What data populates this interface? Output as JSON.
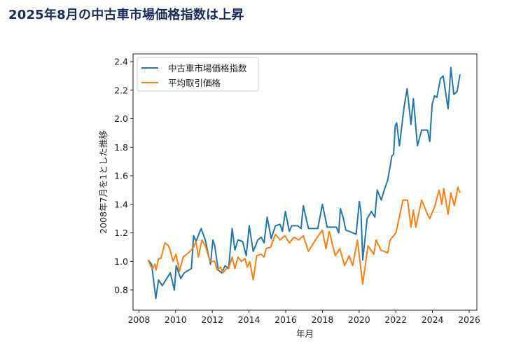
{
  "page": {
    "title": "2025年8月の中古車市場価格指数は上昇"
  },
  "chart_data": {
    "type": "line",
    "title": "",
    "xlabel": "年月",
    "ylabel": "2008年7月を1とした推移",
    "xlim": [
      2007.68,
      2026.42
    ],
    "ylim": [
      0.658,
      2.454
    ],
    "xticks": [
      2008,
      2010,
      2012,
      2014,
      2016,
      2018,
      2020,
      2022,
      2024,
      2026
    ],
    "yticks": [
      0.8,
      1.0,
      1.2,
      1.4,
      1.6,
      1.8,
      2.0,
      2.2,
      2.4
    ],
    "ytick_labels": [
      "0.8",
      "1.0",
      "1.2",
      "1.4",
      "1.6",
      "1.8",
      "2.0",
      "2.2",
      "2.4"
    ],
    "grid": false,
    "legend_placement": "top-left",
    "series": [
      {
        "name": "中古車市場価格指数",
        "color": "#1f77b4",
        "points": [
          [
            2008.5,
            1.01
          ],
          [
            2008.69,
            0.98
          ],
          [
            2008.92,
            0.74
          ],
          [
            2009.07,
            0.87
          ],
          [
            2009.27,
            0.83
          ],
          [
            2009.71,
            0.92
          ],
          [
            2009.93,
            0.8
          ],
          [
            2010.03,
            0.97
          ],
          [
            2010.28,
            0.88
          ],
          [
            2010.47,
            0.92
          ],
          [
            2010.86,
            0.95
          ],
          [
            2010.98,
            1.18
          ],
          [
            2011.11,
            1.14
          ],
          [
            2011.39,
            1.23
          ],
          [
            2011.62,
            1.15
          ],
          [
            2011.8,
            1.04
          ],
          [
            2011.9,
            0.98
          ],
          [
            2012.03,
            1.15
          ],
          [
            2012.13,
            1.11
          ],
          [
            2012.32,
            0.94
          ],
          [
            2012.51,
            0.92
          ],
          [
            2012.7,
            0.97
          ],
          [
            2012.89,
            0.95
          ],
          [
            2013.08,
            1.23
          ],
          [
            2013.23,
            1.08
          ],
          [
            2013.4,
            1.15
          ],
          [
            2013.65,
            1.14
          ],
          [
            2013.85,
            1.04
          ],
          [
            2014.01,
            1.25
          ],
          [
            2014.23,
            1.07
          ],
          [
            2014.48,
            1.15
          ],
          [
            2014.67,
            1.17
          ],
          [
            2014.82,
            1.13
          ],
          [
            2014.99,
            1.31
          ],
          [
            2015.21,
            1.16
          ],
          [
            2015.44,
            1.25
          ],
          [
            2015.69,
            1.26
          ],
          [
            2015.82,
            1.21
          ],
          [
            2015.98,
            1.35
          ],
          [
            2016.2,
            1.21
          ],
          [
            2016.33,
            1.25
          ],
          [
            2016.65,
            1.25
          ],
          [
            2016.84,
            1.23
          ],
          [
            2016.96,
            1.39
          ],
          [
            2017.24,
            1.23
          ],
          [
            2017.75,
            1.23
          ],
          [
            2018.0,
            1.4
          ],
          [
            2018.26,
            1.24
          ],
          [
            2018.76,
            1.24
          ],
          [
            2018.89,
            1.2
          ],
          [
            2018.98,
            1.37
          ],
          [
            2019.15,
            1.3
          ],
          [
            2019.27,
            1.22
          ],
          [
            2019.65,
            1.2
          ],
          [
            2019.84,
            1.19
          ],
          [
            2020.01,
            1.42
          ],
          [
            2020.1,
            1.35
          ],
          [
            2020.2,
            1.01
          ],
          [
            2020.44,
            1.3
          ],
          [
            2020.67,
            1.35
          ],
          [
            2020.86,
            1.31
          ],
          [
            2020.99,
            1.5
          ],
          [
            2021.21,
            1.43
          ],
          [
            2021.37,
            1.5
          ],
          [
            2021.56,
            1.57
          ],
          [
            2021.79,
            1.74
          ],
          [
            2021.88,
            1.75
          ],
          [
            2021.97,
            1.95
          ],
          [
            2022.05,
            1.97
          ],
          [
            2022.2,
            1.81
          ],
          [
            2022.45,
            2.08
          ],
          [
            2022.62,
            2.21
          ],
          [
            2022.83,
            1.96
          ],
          [
            2022.96,
            2.14
          ],
          [
            2023.18,
            1.81
          ],
          [
            2023.41,
            1.92
          ],
          [
            2023.73,
            1.92
          ],
          [
            2023.85,
            1.84
          ],
          [
            2023.98,
            2.1
          ],
          [
            2024.11,
            2.16
          ],
          [
            2024.24,
            2.15
          ],
          [
            2024.43,
            2.28
          ],
          [
            2024.58,
            2.3
          ],
          [
            2024.85,
            2.07
          ],
          [
            2025.0,
            2.36
          ],
          [
            2025.16,
            2.17
          ],
          [
            2025.34,
            2.19
          ],
          [
            2025.5,
            2.31
          ]
        ]
      },
      {
        "name": "平均取引価格",
        "color": "#ff7f0e",
        "points": [
          [
            2008.5,
            1.01
          ],
          [
            2008.63,
            0.97
          ],
          [
            2008.75,
            0.95
          ],
          [
            2008.88,
            0.98
          ],
          [
            2008.94,
            0.94
          ],
          [
            2009.07,
            1.02
          ],
          [
            2009.2,
            1.02
          ],
          [
            2009.42,
            1.13
          ],
          [
            2009.61,
            1.11
          ],
          [
            2009.74,
            1.06
          ],
          [
            2009.86,
            1.0
          ],
          [
            2010.02,
            1.05
          ],
          [
            2010.21,
            0.93
          ],
          [
            2010.41,
            1.03
          ],
          [
            2010.6,
            1.05
          ],
          [
            2010.79,
            1.07
          ],
          [
            2010.98,
            1.1
          ],
          [
            2011.11,
            1.14
          ],
          [
            2011.24,
            1.03
          ],
          [
            2011.43,
            1.15
          ],
          [
            2011.62,
            1.11
          ],
          [
            2011.88,
            1.0
          ],
          [
            2012.13,
            1.0
          ],
          [
            2012.26,
            0.94
          ],
          [
            2012.45,
            0.96
          ],
          [
            2012.58,
            0.92
          ],
          [
            2012.77,
            0.95
          ],
          [
            2012.89,
            0.95
          ],
          [
            2013.08,
            1.03
          ],
          [
            2013.23,
            0.95
          ],
          [
            2013.4,
            1.03
          ],
          [
            2013.59,
            1.0
          ],
          [
            2013.78,
            1.02
          ],
          [
            2013.91,
            0.96
          ],
          [
            2014.04,
            1.0
          ],
          [
            2014.23,
            0.87
          ],
          [
            2014.42,
            1.04
          ],
          [
            2014.67,
            1.05
          ],
          [
            2014.82,
            1.03
          ],
          [
            2014.93,
            1.09
          ],
          [
            2015.18,
            1.1
          ],
          [
            2015.44,
            1.19
          ],
          [
            2015.69,
            1.15
          ],
          [
            2015.95,
            1.18
          ],
          [
            2016.2,
            1.13
          ],
          [
            2016.46,
            1.17
          ],
          [
            2016.71,
            1.15
          ],
          [
            2016.96,
            1.18
          ],
          [
            2017.24,
            1.07
          ],
          [
            2017.62,
            1.15
          ],
          [
            2018.0,
            1.22
          ],
          [
            2018.19,
            1.09
          ],
          [
            2018.38,
            1.21
          ],
          [
            2018.7,
            1.04
          ],
          [
            2018.95,
            1.09
          ],
          [
            2019.21,
            0.97
          ],
          [
            2019.46,
            1.04
          ],
          [
            2019.65,
            0.97
          ],
          [
            2019.91,
            1.15
          ],
          [
            2020.2,
            0.84
          ],
          [
            2020.48,
            1.11
          ],
          [
            2020.8,
            1.05
          ],
          [
            2020.93,
            1.15
          ],
          [
            2021.18,
            1.08
          ],
          [
            2021.56,
            1.06
          ],
          [
            2021.69,
            1.15
          ],
          [
            2022.01,
            1.2
          ],
          [
            2022.39,
            1.43
          ],
          [
            2022.64,
            1.43
          ],
          [
            2022.83,
            1.24
          ],
          [
            2022.96,
            1.36
          ],
          [
            2023.09,
            1.24
          ],
          [
            2023.41,
            1.43
          ],
          [
            2023.73,
            1.33
          ],
          [
            2023.85,
            1.3
          ],
          [
            2024.11,
            1.38
          ],
          [
            2024.36,
            1.5
          ],
          [
            2024.51,
            1.4
          ],
          [
            2024.62,
            1.51
          ],
          [
            2024.85,
            1.33
          ],
          [
            2025.0,
            1.48
          ],
          [
            2025.19,
            1.39
          ],
          [
            2025.38,
            1.52
          ],
          [
            2025.5,
            1.48
          ]
        ]
      }
    ]
  }
}
